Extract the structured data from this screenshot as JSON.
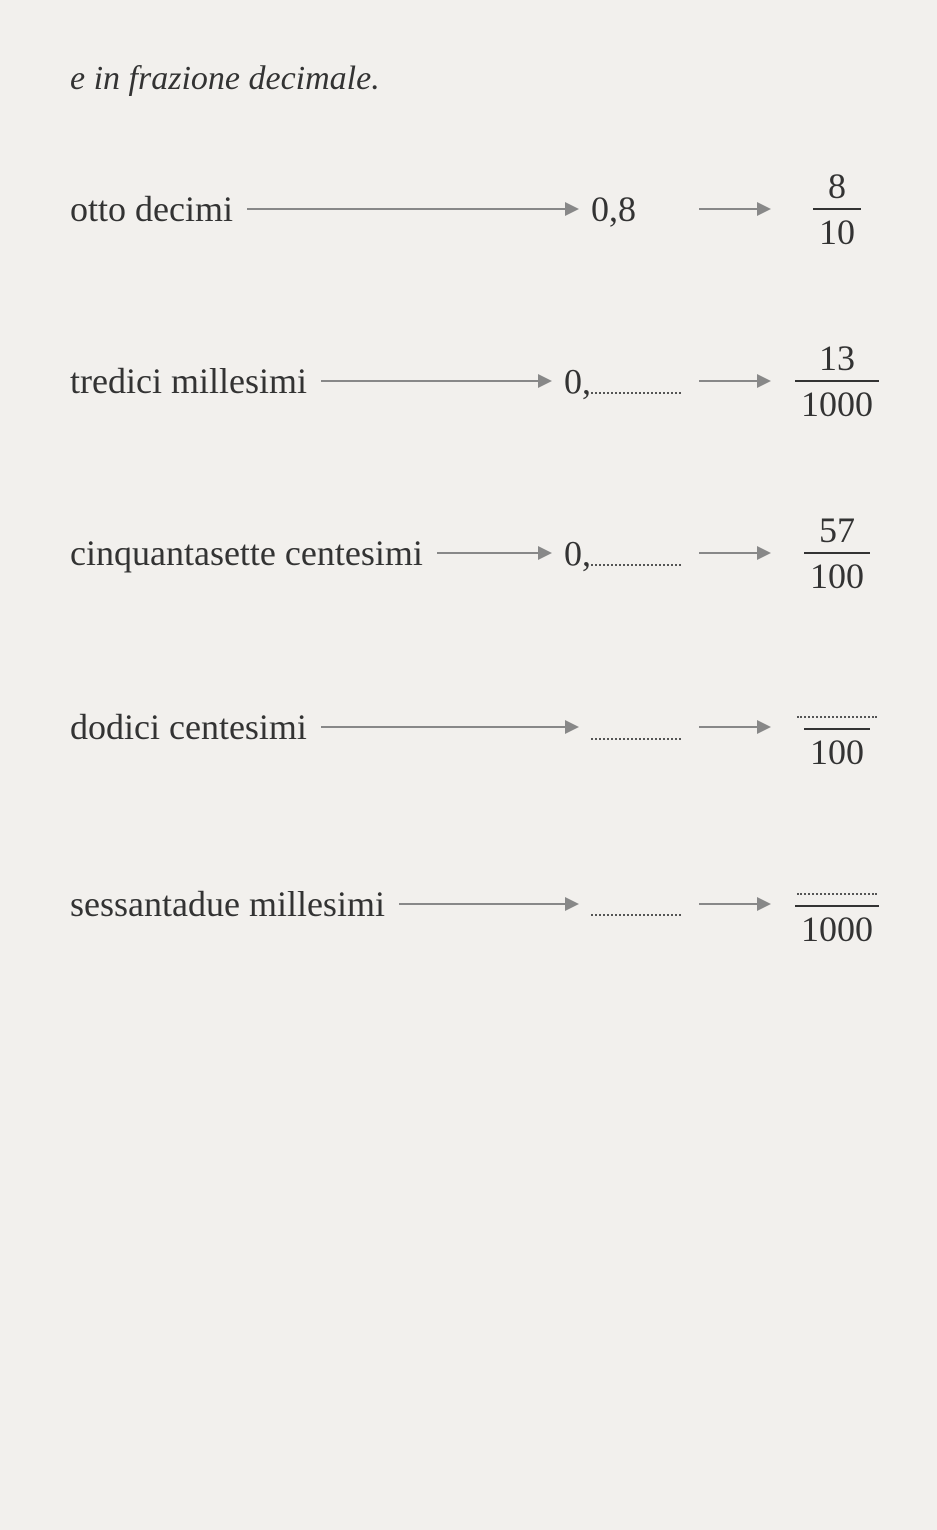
{
  "heading": "e in frazione decimale.",
  "rows": [
    {
      "word": "otto decimi",
      "decimal_prefix": "0,8",
      "decimal_blank": false,
      "numerator": "8",
      "numerator_blank": false,
      "denominator": "10"
    },
    {
      "word": "tredici millesimi",
      "decimal_prefix": "0,",
      "decimal_blank": true,
      "numerator": "13",
      "numerator_blank": false,
      "denominator": "1000"
    },
    {
      "word": "cinquantasette centesimi",
      "decimal_prefix": "0,",
      "decimal_blank": true,
      "numerator": "57",
      "numerator_blank": false,
      "denominator": "100"
    },
    {
      "word": "dodici centesimi",
      "decimal_prefix": "",
      "decimal_blank": true,
      "numerator": "",
      "numerator_blank": true,
      "denominator": "100"
    },
    {
      "word": "sessantadue millesimi",
      "decimal_prefix": "",
      "decimal_blank": true,
      "numerator": "",
      "numerator_blank": true,
      "denominator": "1000"
    }
  ]
}
